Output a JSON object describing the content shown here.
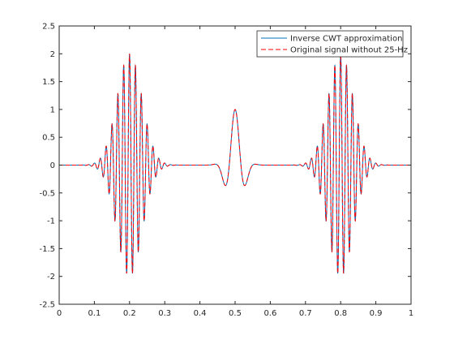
{
  "chart_data": {
    "type": "line",
    "title": "",
    "xlabel": "",
    "ylabel": "",
    "xlim": [
      0,
      1
    ],
    "ylim": [
      -2.5,
      2.5
    ],
    "xticks": [
      0,
      0.1,
      0.2,
      0.3,
      0.4,
      0.5,
      0.6,
      0.7,
      0.8,
      0.9,
      1
    ],
    "xtick_labels": [
      "0",
      "0.1",
      "0.2",
      "0.3",
      "0.4",
      "0.5",
      "0.6",
      "0.7",
      "0.8",
      "0.9",
      "1"
    ],
    "yticks": [
      -2.5,
      -2,
      -1.5,
      -1,
      -0.5,
      0,
      0.5,
      1,
      1.5,
      2,
      2.5
    ],
    "ytick_labels": [
      "-2.5",
      "-2",
      "-1.5",
      "-1",
      "-0.5",
      "0",
      "0.5",
      "1",
      "1.5",
      "2",
      "2.5"
    ],
    "grid": false,
    "legend_position": "top-right",
    "series": [
      {
        "name": "Inverse CWT approximation",
        "color": "#0072BD",
        "style": "solid",
        "components": [
          {
            "kind": "burst",
            "frequency_hz": 60,
            "amplitude": 2.0,
            "center": 0.2,
            "width": 0.05
          },
          {
            "kind": "burst",
            "frequency_hz": 60,
            "amplitude": 2.0,
            "center": 0.8,
            "width": 0.05
          },
          {
            "kind": "burst",
            "frequency_hz": 15,
            "amplitude": 1.0,
            "center": 0.5,
            "width": 0.03
          }
        ]
      },
      {
        "name": "Original signal without 25-Hz",
        "color": "#FF0000",
        "style": "dashed",
        "components": [
          {
            "kind": "burst",
            "frequency_hz": 60,
            "amplitude": 2.0,
            "center": 0.2,
            "width": 0.05
          },
          {
            "kind": "burst",
            "frequency_hz": 60,
            "amplitude": 2.0,
            "center": 0.8,
            "width": 0.05
          },
          {
            "kind": "burst",
            "frequency_hz": 15,
            "amplitude": 1.0,
            "center": 0.5,
            "width": 0.03
          }
        ]
      }
    ]
  }
}
